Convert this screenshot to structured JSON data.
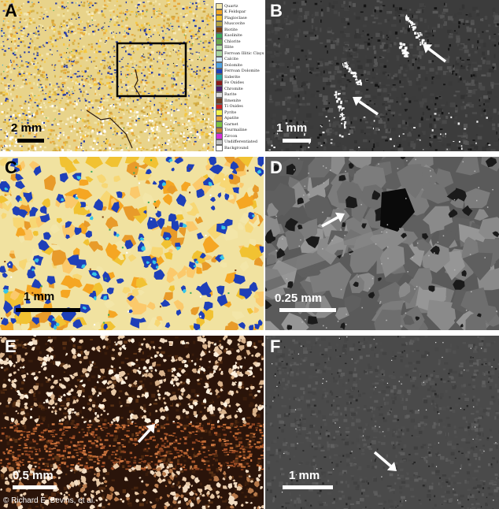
{
  "panels": {
    "a": {
      "label": "A",
      "scale": "2 mm"
    },
    "b": {
      "label": "B",
      "scale": "1 mm"
    },
    "c": {
      "label": "C",
      "scale": "1 mm"
    },
    "d": {
      "label": "D",
      "scale": "0.25 mm"
    },
    "e": {
      "label": "E",
      "scale": "0.5 mm"
    },
    "f": {
      "label": "F",
      "scale": "1 mm"
    }
  },
  "legend": {
    "items": [
      {
        "name": "Quartz",
        "color": "#f4e7a6"
      },
      {
        "name": "K Feldspar",
        "color": "#f5a623"
      },
      {
        "name": "Plagioclase",
        "color": "#f1c232"
      },
      {
        "name": "Muscovite",
        "color": "#b5a642"
      },
      {
        "name": "Biotite",
        "color": "#7a3b10"
      },
      {
        "name": "Kaolinite",
        "color": "#38a85a"
      },
      {
        "name": "Chlorite",
        "color": "#6aa84f"
      },
      {
        "name": "Illite",
        "color": "#b6e3a8"
      },
      {
        "name": "Ferroan Illitic Clays",
        "color": "#a8d5a0"
      },
      {
        "name": "Calcite",
        "color": "#cfe8ff"
      },
      {
        "name": "Dolomite",
        "color": "#4fa3e0"
      },
      {
        "name": "Ferroan Dolomite",
        "color": "#1e3fb8"
      },
      {
        "name": "Siderite",
        "color": "#22a7a0"
      },
      {
        "name": "Fe Oxides",
        "color": "#8b1a1a"
      },
      {
        "name": "Chromite",
        "color": "#4a1f6e"
      },
      {
        "name": "Barite",
        "color": "#d9d9d9"
      },
      {
        "name": "Ilmenite",
        "color": "#6b3e26"
      },
      {
        "name": "Ti Oxides",
        "color": "#cc2222"
      },
      {
        "name": "Pyrite",
        "color": "#f3f34a"
      },
      {
        "name": "Apatite",
        "color": "#e8a33b"
      },
      {
        "name": "Garnet",
        "color": "#7cc242"
      },
      {
        "name": "Tourmaline",
        "color": "#c67b2d"
      },
      {
        "name": "Zircon",
        "color": "#d62fd6"
      },
      {
        "name": "Undifferentiated",
        "color": "#bfbfbf"
      },
      {
        "name": "Background",
        "color": "#ffffff"
      }
    ]
  },
  "credit": "© Richard E. Bevins, et al."
}
